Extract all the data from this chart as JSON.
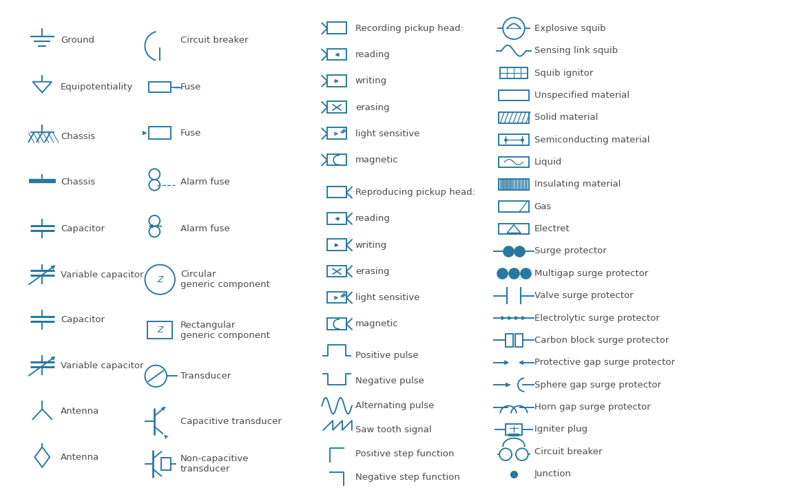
{
  "bg_color": "#ffffff",
  "symbol_color": "#2878a0",
  "text_color": "#4a4a4a",
  "font_size": 9.5,
  "col1_labels": [
    "Ground",
    "Equipotentiality",
    "Chassis",
    "Chassis",
    "Capacitor",
    "Variable capacitor",
    "Capacitor",
    "Variable capacitor",
    "Antenna",
    "Antenna"
  ],
  "col2_labels": [
    "Circuit breaker",
    "Fuse",
    "Fuse",
    "Alarm fuse",
    "Alarm fuse",
    "Circular\ngeneric component",
    "Rectangular\ngeneric component",
    "Transducer",
    "Capacitive transducer",
    "Non-capacitive\ntransducer"
  ],
  "col3_labels": [
    "Recording pickup head:",
    "reading",
    "writing",
    "erasing",
    "light sensitive",
    "magnetic",
    "Reproducing pickup head:",
    "reading",
    "writing",
    "erasing",
    "light sensitive",
    "magnetic",
    "Positive pulse",
    "Negative pulse",
    "Alternating pulse",
    "Saw tooth signal",
    "Positive step function",
    "Negative step function"
  ],
  "col4_labels": [
    "Explosive squib",
    "Sensing link squib",
    "Squib ignitor",
    "Unspecified material",
    "Solid material",
    "Semiconducting material",
    "Liquid",
    "Insulating material",
    "Gas",
    "Electret",
    "Surge protector",
    "Multigap surge protector",
    "Valve surge protector",
    "Electrolytic surge protector",
    "Carbon block surge protector",
    "Protective gap surge protector",
    "Sphere gap surge protector",
    "Horn gap surge protector",
    "Igniter plug",
    "Circuit breaker",
    "Junction"
  ]
}
